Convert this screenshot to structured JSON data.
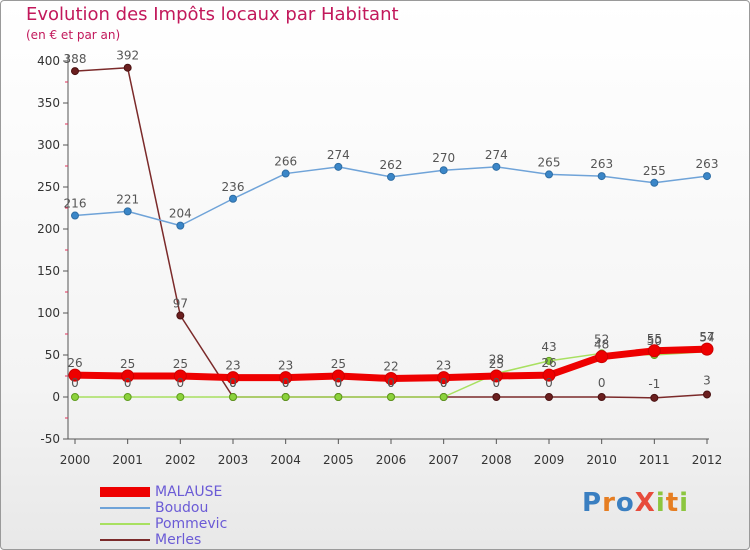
{
  "title": "Evolution des Impôts locaux par Habitant",
  "subtitle": "(en € et par an)",
  "logo": {
    "text": "ProXiti",
    "letters": [
      "P",
      "r",
      "o",
      "X",
      "i",
      "t",
      "i"
    ],
    "colors": [
      "#3a7fc1",
      "#e67e22",
      "#3a7fc1",
      "#e74c3c",
      "#8cc63f",
      "#e67e22",
      "#8cc63f"
    ]
  },
  "chart_data": {
    "type": "line",
    "title": "Evolution des Impôts locaux par Habitant",
    "subtitle": "(en € et par an)",
    "xlabel": "",
    "ylabel": "",
    "x": [
      "2000",
      "2001",
      "2002",
      "2003",
      "2004",
      "2005",
      "2006",
      "2007",
      "2008",
      "2009",
      "2010",
      "2011",
      "2012"
    ],
    "ylim": [
      -50,
      400
    ],
    "yticks": [
      -50,
      0,
      50,
      100,
      150,
      200,
      250,
      300,
      350,
      400
    ],
    "grid": false,
    "legend_position": "bottom-left",
    "series": [
      {
        "name": "MALAUSE",
        "color": "#ee0000",
        "values": [
          26,
          25,
          25,
          23,
          23,
          25,
          22,
          23,
          25,
          26,
          48,
          55,
          57
        ],
        "labels": [
          "26",
          "25",
          "25",
          "23",
          "23",
          "25",
          "22",
          "23",
          "25",
          "26",
          "48",
          "55",
          "57"
        ]
      },
      {
        "name": "Boudou",
        "color": "#6fa3d8",
        "values": [
          216,
          221,
          204,
          236,
          266,
          274,
          262,
          270,
          274,
          265,
          263,
          255,
          263
        ],
        "labels": [
          "216",
          "221",
          "204",
          "236",
          "266",
          "274",
          "262",
          "270",
          "274",
          "265",
          "263",
          "255",
          "263"
        ]
      },
      {
        "name": "Pommevic",
        "color": "#a8e060",
        "values": [
          0,
          0,
          0,
          0,
          0,
          0,
          0,
          0,
          28,
          43,
          52,
          50,
          54
        ],
        "labels": [
          "0",
          "0",
          "0",
          "0",
          "0",
          "0",
          "0",
          "0",
          "28",
          "43",
          "52",
          "50",
          "54"
        ]
      },
      {
        "name": "Merles",
        "color": "#7b2a2a",
        "values": [
          388,
          392,
          97,
          0,
          0,
          0,
          0,
          0,
          0,
          0,
          0,
          -1,
          3
        ],
        "labels": [
          "388",
          "392",
          "97",
          "0",
          "0",
          "0",
          "0",
          "0",
          "0",
          "0",
          "0",
          "-1",
          "3"
        ]
      }
    ]
  }
}
